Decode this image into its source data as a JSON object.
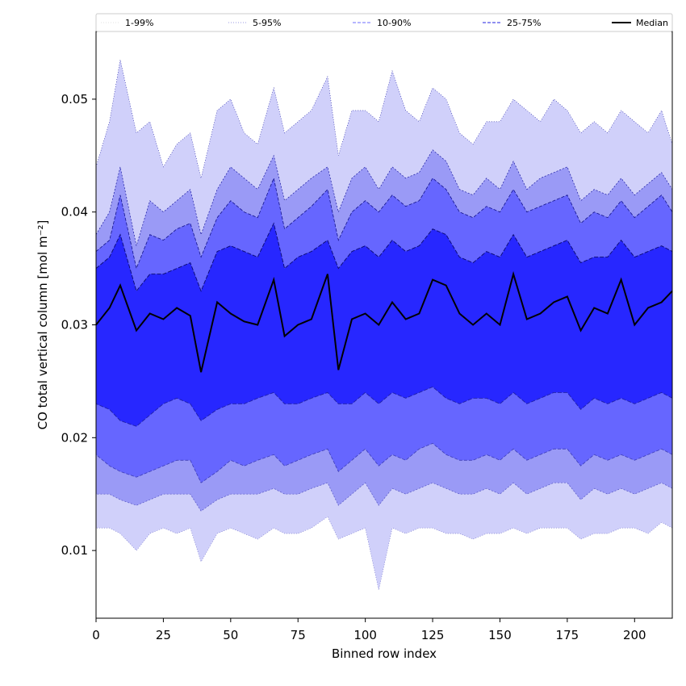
{
  "chart_data": {
    "type": "area",
    "xlabel": "Binned row index",
    "ylabel": "CO total vertical column [mol m⁻²]",
    "xlim": [
      0,
      214
    ],
    "ylim": [
      0.004,
      0.056
    ],
    "xticks": [
      0,
      25,
      50,
      75,
      100,
      125,
      150,
      175,
      200
    ],
    "xtick_labels": [
      "0",
      "25",
      "50",
      "75",
      "100",
      "125",
      "150",
      "175",
      "200"
    ],
    "yticks": [
      0.01,
      0.02,
      0.03,
      0.04,
      0.05
    ],
    "ytick_labels": [
      "0.01",
      "0.02",
      "0.03",
      "0.04",
      "0.05"
    ],
    "grid": false,
    "legend_position": "top, spanning plot width",
    "legend": [
      {
        "label": "1-99%",
        "color": "#e0e0e0",
        "style": "dotted"
      },
      {
        "label": "5-95%",
        "color": "#9999e0",
        "style": "dotted"
      },
      {
        "label": "10-90%",
        "color": "#6c6cff",
        "style": "dashed"
      },
      {
        "label": "25-75%",
        "color": "#2020e0",
        "style": "dashed"
      },
      {
        "label": "Median",
        "color": "#000000",
        "style": "solid"
      }
    ],
    "x": [
      0,
      5,
      9,
      15,
      20,
      25,
      30,
      35,
      39,
      45,
      50,
      55,
      60,
      66,
      70,
      75,
      80,
      86,
      90,
      95,
      100,
      105,
      110,
      115,
      120,
      125,
      130,
      135,
      140,
      145,
      150,
      155,
      160,
      165,
      170,
      175,
      180,
      185,
      190,
      195,
      200,
      205,
      210,
      214
    ],
    "series": [
      {
        "name": "Median",
        "values": [
          0.03,
          0.0315,
          0.0335,
          0.0295,
          0.031,
          0.0305,
          0.0315,
          0.0308,
          0.0258,
          0.032,
          0.031,
          0.0303,
          0.03,
          0.034,
          0.029,
          0.03,
          0.0305,
          0.0345,
          0.026,
          0.0305,
          0.031,
          0.03,
          0.032,
          0.0305,
          0.031,
          0.034,
          0.0335,
          0.031,
          0.03,
          0.031,
          0.03,
          0.0345,
          0.0305,
          0.031,
          0.032,
          0.0325,
          0.0295,
          0.0315,
          0.031,
          0.034,
          0.03,
          0.0315,
          0.032,
          0.033
        ]
      },
      {
        "name": "25-75%",
        "values": [
          [
            0.023,
            0.035
          ],
          [
            0.0225,
            0.036
          ],
          [
            0.0215,
            0.038
          ],
          [
            0.021,
            0.033
          ],
          [
            0.022,
            0.0345
          ],
          [
            0.023,
            0.0345
          ],
          [
            0.0235,
            0.035
          ],
          [
            0.023,
            0.0355
          ],
          [
            0.0215,
            0.033
          ],
          [
            0.0225,
            0.0365
          ],
          [
            0.023,
            0.037
          ],
          [
            0.023,
            0.0365
          ],
          [
            0.0235,
            0.036
          ],
          [
            0.024,
            0.039
          ],
          [
            0.023,
            0.035
          ],
          [
            0.023,
            0.036
          ],
          [
            0.0235,
            0.0365
          ],
          [
            0.024,
            0.0375
          ],
          [
            0.023,
            0.035
          ],
          [
            0.023,
            0.0365
          ],
          [
            0.024,
            0.037
          ],
          [
            0.023,
            0.036
          ],
          [
            0.024,
            0.0375
          ],
          [
            0.0235,
            0.0365
          ],
          [
            0.024,
            0.037
          ],
          [
            0.0245,
            0.0385
          ],
          [
            0.0235,
            0.038
          ],
          [
            0.023,
            0.036
          ],
          [
            0.0235,
            0.0355
          ],
          [
            0.0235,
            0.0365
          ],
          [
            0.023,
            0.036
          ],
          [
            0.024,
            0.038
          ],
          [
            0.023,
            0.036
          ],
          [
            0.0235,
            0.0365
          ],
          [
            0.024,
            0.037
          ],
          [
            0.024,
            0.0375
          ],
          [
            0.0225,
            0.0355
          ],
          [
            0.0235,
            0.036
          ],
          [
            0.023,
            0.036
          ],
          [
            0.0235,
            0.0375
          ],
          [
            0.023,
            0.036
          ],
          [
            0.0235,
            0.0365
          ],
          [
            0.024,
            0.037
          ],
          [
            0.0235,
            0.0365
          ]
        ]
      },
      {
        "name": "10-90%",
        "values": [
          [
            0.0185,
            0.0365
          ],
          [
            0.0175,
            0.0375
          ],
          [
            0.017,
            0.0415
          ],
          [
            0.0165,
            0.035
          ],
          [
            0.017,
            0.038
          ],
          [
            0.0175,
            0.0375
          ],
          [
            0.018,
            0.0385
          ],
          [
            0.018,
            0.039
          ],
          [
            0.016,
            0.036
          ],
          [
            0.017,
            0.0395
          ],
          [
            0.018,
            0.041
          ],
          [
            0.0175,
            0.04
          ],
          [
            0.018,
            0.0395
          ],
          [
            0.0185,
            0.043
          ],
          [
            0.0175,
            0.0385
          ],
          [
            0.018,
            0.0395
          ],
          [
            0.0185,
            0.0405
          ],
          [
            0.019,
            0.042
          ],
          [
            0.017,
            0.0375
          ],
          [
            0.018,
            0.04
          ],
          [
            0.019,
            0.041
          ],
          [
            0.0175,
            0.04
          ],
          [
            0.0185,
            0.0415
          ],
          [
            0.018,
            0.0405
          ],
          [
            0.019,
            0.041
          ],
          [
            0.0195,
            0.043
          ],
          [
            0.0185,
            0.042
          ],
          [
            0.018,
            0.04
          ],
          [
            0.018,
            0.0395
          ],
          [
            0.0185,
            0.0405
          ],
          [
            0.018,
            0.04
          ],
          [
            0.019,
            0.042
          ],
          [
            0.018,
            0.04
          ],
          [
            0.0185,
            0.0405
          ],
          [
            0.019,
            0.041
          ],
          [
            0.019,
            0.0415
          ],
          [
            0.0175,
            0.039
          ],
          [
            0.0185,
            0.04
          ],
          [
            0.018,
            0.0395
          ],
          [
            0.0185,
            0.041
          ],
          [
            0.018,
            0.0395
          ],
          [
            0.0185,
            0.0405
          ],
          [
            0.019,
            0.0415
          ],
          [
            0.0185,
            0.04
          ]
        ]
      },
      {
        "name": "5-95%",
        "values": [
          [
            0.015,
            0.038
          ],
          [
            0.015,
            0.04
          ],
          [
            0.0145,
            0.044
          ],
          [
            0.014,
            0.037
          ],
          [
            0.0145,
            0.041
          ],
          [
            0.015,
            0.04
          ],
          [
            0.015,
            0.041
          ],
          [
            0.015,
            0.042
          ],
          [
            0.0135,
            0.038
          ],
          [
            0.0145,
            0.042
          ],
          [
            0.015,
            0.044
          ],
          [
            0.015,
            0.043
          ],
          [
            0.015,
            0.042
          ],
          [
            0.0155,
            0.045
          ],
          [
            0.015,
            0.041
          ],
          [
            0.015,
            0.042
          ],
          [
            0.0155,
            0.043
          ],
          [
            0.016,
            0.044
          ],
          [
            0.014,
            0.04
          ],
          [
            0.015,
            0.043
          ],
          [
            0.016,
            0.044
          ],
          [
            0.014,
            0.042
          ],
          [
            0.0155,
            0.044
          ],
          [
            0.015,
            0.043
          ],
          [
            0.0155,
            0.0435
          ],
          [
            0.016,
            0.0455
          ],
          [
            0.0155,
            0.0445
          ],
          [
            0.015,
            0.042
          ],
          [
            0.015,
            0.0415
          ],
          [
            0.0155,
            0.043
          ],
          [
            0.015,
            0.042
          ],
          [
            0.016,
            0.0445
          ],
          [
            0.015,
            0.042
          ],
          [
            0.0155,
            0.043
          ],
          [
            0.016,
            0.0435
          ],
          [
            0.016,
            0.044
          ],
          [
            0.0145,
            0.041
          ],
          [
            0.0155,
            0.042
          ],
          [
            0.015,
            0.0415
          ],
          [
            0.0155,
            0.043
          ],
          [
            0.015,
            0.0415
          ],
          [
            0.0155,
            0.0425
          ],
          [
            0.016,
            0.0435
          ],
          [
            0.0155,
            0.042
          ]
        ]
      },
      {
        "name": "1-99%",
        "values": [
          [
            0.012,
            0.044
          ],
          [
            0.012,
            0.048
          ],
          [
            0.0115,
            0.0535
          ],
          [
            0.01,
            0.047
          ],
          [
            0.0115,
            0.048
          ],
          [
            0.012,
            0.044
          ],
          [
            0.0115,
            0.046
          ],
          [
            0.012,
            0.047
          ],
          [
            0.009,
            0.043
          ],
          [
            0.0115,
            0.049
          ],
          [
            0.012,
            0.05
          ],
          [
            0.0115,
            0.047
          ],
          [
            0.011,
            0.046
          ],
          [
            0.012,
            0.051
          ],
          [
            0.0115,
            0.047
          ],
          [
            0.0115,
            0.048
          ],
          [
            0.012,
            0.049
          ],
          [
            0.013,
            0.052
          ],
          [
            0.011,
            0.045
          ],
          [
            0.0115,
            0.049
          ],
          [
            0.012,
            0.049
          ],
          [
            0.0065,
            0.048
          ],
          [
            0.012,
            0.0525
          ],
          [
            0.0115,
            0.049
          ],
          [
            0.012,
            0.048
          ],
          [
            0.012,
            0.051
          ],
          [
            0.0115,
            0.05
          ],
          [
            0.0115,
            0.047
          ],
          [
            0.011,
            0.046
          ],
          [
            0.0115,
            0.048
          ],
          [
            0.0115,
            0.048
          ],
          [
            0.012,
            0.05
          ],
          [
            0.0115,
            0.049
          ],
          [
            0.012,
            0.048
          ],
          [
            0.012,
            0.05
          ],
          [
            0.012,
            0.049
          ],
          [
            0.011,
            0.047
          ],
          [
            0.0115,
            0.048
          ],
          [
            0.0115,
            0.047
          ],
          [
            0.012,
            0.049
          ],
          [
            0.012,
            0.048
          ],
          [
            0.0115,
            0.047
          ],
          [
            0.0125,
            0.049
          ],
          [
            0.012,
            0.046
          ]
        ]
      }
    ]
  }
}
